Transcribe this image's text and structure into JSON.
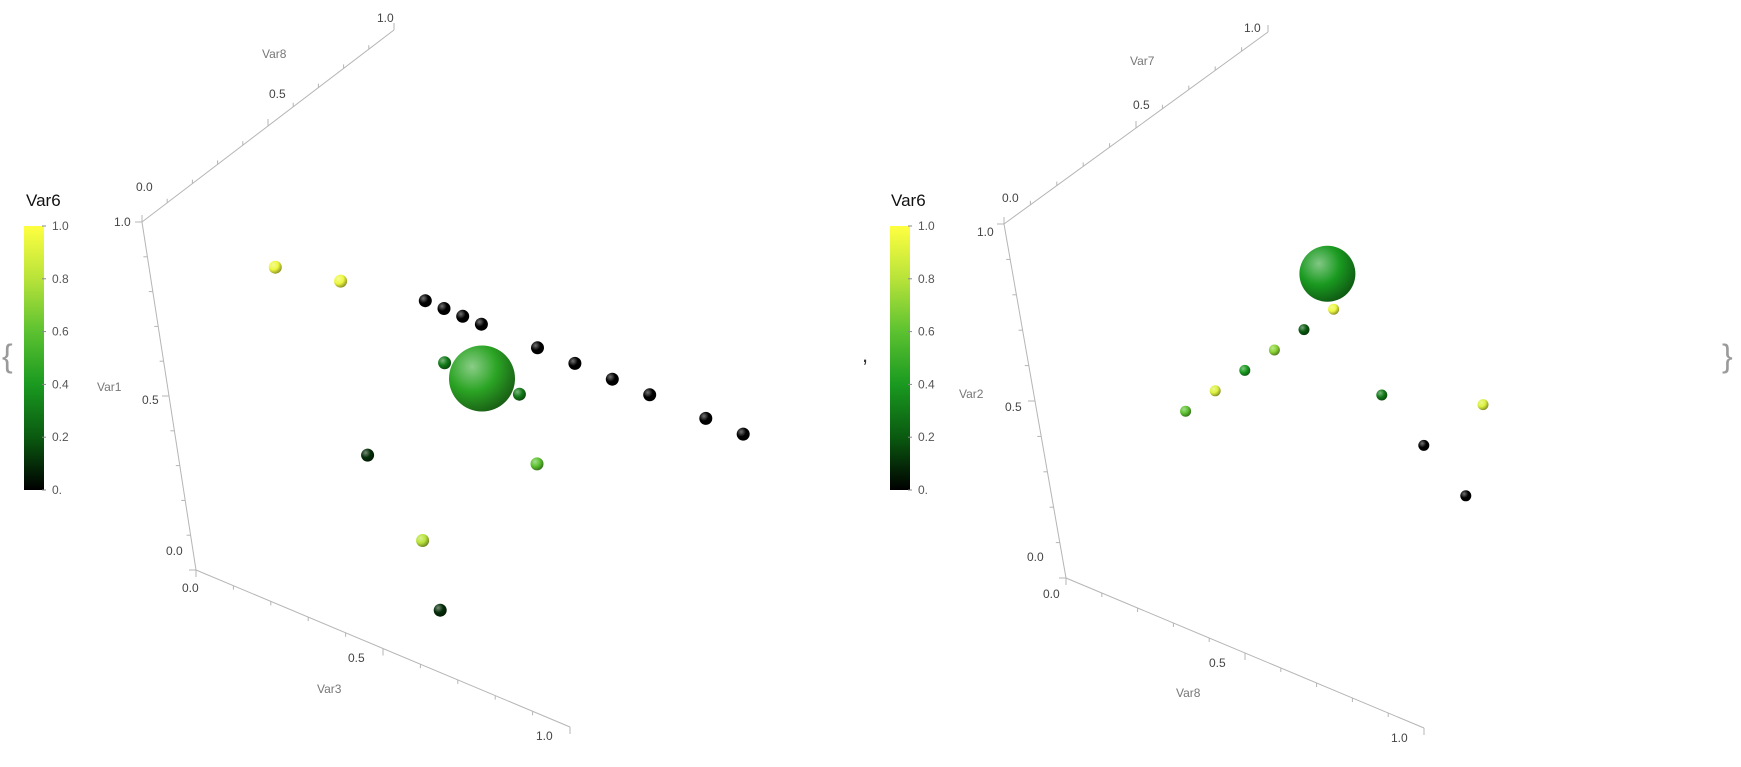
{
  "wrapper": {
    "open_brace": "{",
    "separator": ",",
    "close_brace": "}"
  },
  "legend": {
    "title": "Var6",
    "ticks": [
      "0.",
      "0.2",
      "0.4",
      "0.6",
      "0.8",
      "1.0"
    ],
    "colors": [
      "#000000",
      "#0a5a10",
      "#1a9a20",
      "#5cc230",
      "#b8e33a",
      "#ffff40"
    ]
  },
  "chart_data": [
    {
      "type": "scatter3d",
      "color_variable": "Var6",
      "axes": [
        {
          "name": "Var3",
          "ticks": [
            "0.0",
            "0.5",
            "1.0"
          ],
          "range": [
            0,
            1
          ]
        },
        {
          "name": "Var1",
          "ticks": [
            "0.0",
            "0.5",
            "1.0"
          ],
          "range": [
            0,
            1
          ]
        },
        {
          "name": "Var8",
          "ticks": [
            "0.0",
            "0.5",
            "1.0"
          ],
          "range": [
            0,
            1
          ]
        }
      ],
      "highlight_point": {
        "x": 0.5,
        "y": 0.5,
        "z": 0.5,
        "var6": 0.45
      },
      "points": [
        {
          "x": 0.05,
          "y": 0.3,
          "z": 0.9,
          "c": 0.0
        },
        {
          "x": 0.1,
          "y": 0.3,
          "z": 0.9,
          "c": 0.0
        },
        {
          "x": 0.15,
          "y": 0.3,
          "z": 0.9,
          "c": 0.0
        },
        {
          "x": 0.2,
          "y": 0.3,
          "z": 0.9,
          "c": 0.0
        },
        {
          "x": 0.35,
          "y": 0.3,
          "z": 0.9,
          "c": 0.0
        },
        {
          "x": 0.45,
          "y": 0.3,
          "z": 0.9,
          "c": 0.0
        },
        {
          "x": 0.55,
          "y": 0.3,
          "z": 0.9,
          "c": 0.0
        },
        {
          "x": 0.65,
          "y": 0.3,
          "z": 0.9,
          "c": 0.0
        },
        {
          "x": 0.8,
          "y": 0.3,
          "z": 0.9,
          "c": 0.0
        },
        {
          "x": 0.9,
          "y": 0.3,
          "z": 0.9,
          "c": 0.0
        },
        {
          "x": 0.3,
          "y": 0.8,
          "z": 0.3,
          "c": 0.95
        },
        {
          "x": 0.2,
          "y": 0.85,
          "z": 0.2,
          "c": 0.95
        },
        {
          "x": 0.4,
          "y": 0.5,
          "z": 0.5,
          "c": 0.3
        },
        {
          "x": 0.6,
          "y": 0.5,
          "z": 0.5,
          "c": 0.3
        },
        {
          "x": 0.7,
          "y": 0.4,
          "z": 0.4,
          "c": 0.6
        },
        {
          "x": 0.3,
          "y": 0.3,
          "z": 0.3,
          "c": 0.1
        },
        {
          "x": 0.5,
          "y": 0.2,
          "z": 0.2,
          "c": 0.8
        },
        {
          "x": 0.6,
          "y": 0.1,
          "z": 0.1,
          "c": 0.1
        }
      ]
    },
    {
      "type": "scatter3d",
      "color_variable": "Var6",
      "axes": [
        {
          "name": "Var8",
          "ticks": [
            "0.0",
            "0.5",
            "1.0"
          ],
          "range": [
            0,
            1
          ]
        },
        {
          "name": "Var2",
          "ticks": [
            "0.0",
            "0.5",
            "1.0"
          ],
          "range": [
            0,
            1
          ]
        },
        {
          "name": "Var7",
          "ticks": [
            "0.0",
            "0.5",
            "1.0"
          ],
          "range": [
            0,
            1
          ]
        }
      ],
      "highlight_point": {
        "x": 0.5,
        "y": 0.8,
        "z": 0.5,
        "var6": 0.4
      },
      "points": [
        {
          "x": 0.0,
          "y": 0.2,
          "z": 0.5,
          "c": 0.6
        },
        {
          "x": 0.1,
          "y": 0.3,
          "z": 0.5,
          "c": 0.9
        },
        {
          "x": 0.2,
          "y": 0.4,
          "z": 0.5,
          "c": 0.4
        },
        {
          "x": 0.3,
          "y": 0.5,
          "z": 0.5,
          "c": 0.7
        },
        {
          "x": 0.4,
          "y": 0.6,
          "z": 0.5,
          "c": 0.2
        },
        {
          "x": 0.5,
          "y": 0.7,
          "z": 0.5,
          "c": 0.95
        },
        {
          "x": 0.6,
          "y": 0.5,
          "z": 0.5,
          "c": 0.3
        },
        {
          "x": 0.7,
          "y": 0.4,
          "z": 0.5,
          "c": 0.0
        },
        {
          "x": 0.8,
          "y": 0.3,
          "z": 0.5,
          "c": 0.0
        },
        {
          "x": 0.9,
          "y": 0.6,
          "z": 0.5,
          "c": 0.9
        }
      ]
    }
  ]
}
